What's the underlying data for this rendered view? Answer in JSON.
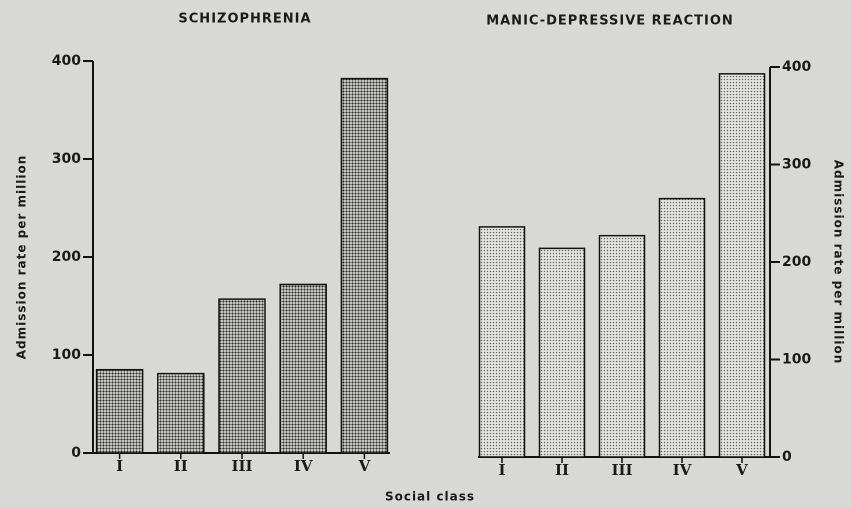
{
  "chart_data": [
    {
      "type": "bar",
      "title": "SCHIZOPHRENIA",
      "ylabel": "Admission rate per million",
      "categories": [
        "I",
        "II",
        "III",
        "IV",
        "V"
      ],
      "values": [
        85,
        81,
        157,
        172,
        382
      ],
      "color": "#2a2a2a",
      "ylim": [
        0,
        400
      ],
      "yticks": [
        0,
        100,
        200,
        300,
        400
      ],
      "yaxis": "left"
    },
    {
      "type": "bar",
      "title": "MANIC-DEPRESSIVE REACTION",
      "ylabel": "Admission rate per million",
      "categories": [
        "I",
        "II",
        "III",
        "IV",
        "V"
      ],
      "values": [
        236,
        214,
        227,
        265,
        393
      ],
      "color": "#6a6a66",
      "ylim": [
        0,
        400
      ],
      "yticks": [
        0,
        100,
        200,
        300,
        400
      ],
      "yaxis": "right"
    }
  ],
  "xlabel": "Social class"
}
